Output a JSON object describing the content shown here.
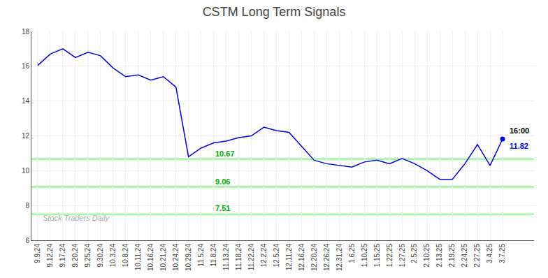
{
  "chart_data": {
    "type": "line",
    "title": "CSTM Long Term Signals",
    "categories": [
      "9.9.24",
      "9.12.24",
      "9.17.24",
      "9.20.24",
      "9.25.24",
      "9.30.24",
      "10.3.24",
      "10.8.24",
      "10.11.24",
      "10.16.24",
      "10.21.24",
      "10.24.24",
      "10.29.24",
      "11.5.24",
      "11.8.24",
      "11.13.24",
      "11.18.24",
      "11.22.24",
      "12.2.24",
      "12.5.24",
      "12.11.24",
      "12.16.24",
      "12.20.24",
      "12.26.24",
      "12.31.24",
      "1.6.25",
      "1.10.25",
      "1.15.25",
      "1.22.25",
      "1.27.25",
      "2.5.25",
      "2.10.25",
      "2.13.25",
      "2.19.25",
      "2.24.25",
      "2.27.25",
      "3.4.25",
      "3.7.25"
    ],
    "values": [
      16.05,
      16.7,
      17.0,
      16.5,
      16.8,
      16.6,
      15.9,
      15.4,
      15.5,
      15.2,
      15.4,
      14.8,
      10.8,
      11.3,
      11.6,
      11.7,
      11.9,
      12.0,
      12.5,
      12.3,
      12.2,
      11.4,
      10.6,
      10.4,
      10.3,
      10.2,
      10.5,
      10.6,
      10.4,
      10.7,
      10.4,
      10.0,
      9.5,
      9.5,
      10.4,
      11.5,
      10.3,
      11.82
    ],
    "color": "#0000cc",
    "ylim": [
      6,
      18
    ],
    "yticks": [
      6,
      8,
      10,
      12,
      14,
      16,
      18
    ],
    "grid": true,
    "hlines": [
      {
        "value": 10.67,
        "label": "10.67",
        "color": "#66ff66",
        "label_color": "#00aa00"
      },
      {
        "value": 9.06,
        "label": "9.06",
        "color": "#66ff66",
        "label_color": "#00aa00"
      },
      {
        "value": 7.51,
        "label": "7.51",
        "color": "#66ff66",
        "label_color": "#00aa00"
      }
    ],
    "annotations": [
      {
        "text": "16:00",
        "color": "#000000"
      },
      {
        "text": "11.82",
        "color": "#0000ff"
      }
    ],
    "watermark": {
      "text": "Stock Traders Daily",
      "color": "#aaaaaa"
    }
  }
}
